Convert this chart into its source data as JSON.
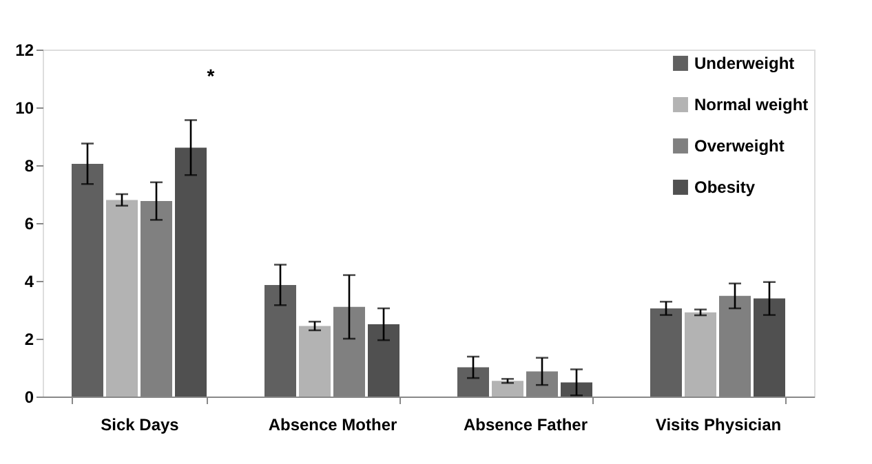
{
  "chart_data": {
    "type": "bar",
    "categories": [
      "Sick Days",
      "Absence Mother",
      "Absence Father",
      "Visits Physician"
    ],
    "series": [
      {
        "name": "Underweight",
        "color": "#606060",
        "values": [
          8.05,
          3.86,
          1.01,
          3.05
        ],
        "errors": [
          0.7,
          0.7,
          0.37,
          0.23
        ]
      },
      {
        "name": "Normal weight",
        "color": "#b3b3b3",
        "values": [
          6.8,
          2.44,
          0.54,
          2.91
        ],
        "errors": [
          0.2,
          0.15,
          0.07,
          0.1
        ]
      },
      {
        "name": "Overweight",
        "color": "#808080",
        "values": [
          6.76,
          3.1,
          0.87,
          3.48
        ],
        "errors": [
          0.65,
          1.1,
          0.47,
          0.43
        ]
      },
      {
        "name": "Obesity",
        "color": "#505050",
        "values": [
          8.61,
          2.5,
          0.49,
          3.39
        ],
        "errors": [
          0.95,
          0.55,
          0.45,
          0.57
        ]
      }
    ],
    "ylim": [
      0,
      12
    ],
    "yticks": [
      0,
      2,
      4,
      6,
      8,
      10,
      12
    ],
    "grid": false,
    "legend": "top right",
    "annotations": [
      "*"
    ]
  }
}
